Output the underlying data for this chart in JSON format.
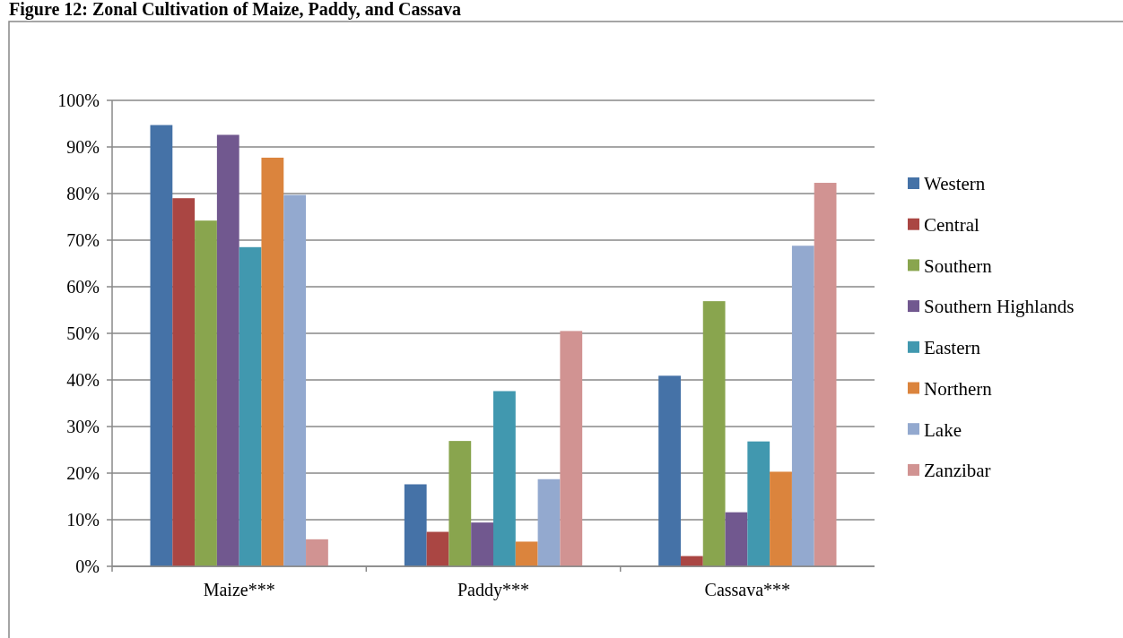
{
  "chart_data": {
    "type": "bar",
    "title": "Figure 12: Zonal Cultivation of Maize, Paddy, and Cassava",
    "categories": [
      "Maize***",
      "Paddy***",
      "Cassava***"
    ],
    "series": [
      {
        "name": "Western",
        "color": "#4572a7",
        "values": [
          94.7,
          17.6,
          40.9
        ]
      },
      {
        "name": "Central",
        "color": "#aa4643",
        "values": [
          79.0,
          7.4,
          2.2
        ]
      },
      {
        "name": "Southern",
        "color": "#89a54e",
        "values": [
          74.2,
          26.9,
          56.9
        ]
      },
      {
        "name": "Southern Highlands",
        "color": "#71588f",
        "values": [
          92.6,
          9.4,
          11.6
        ]
      },
      {
        "name": "Eastern",
        "color": "#4198af",
        "values": [
          68.5,
          37.6,
          26.8
        ]
      },
      {
        "name": "Northern",
        "color": "#db843d",
        "values": [
          87.7,
          5.3,
          20.3
        ]
      },
      {
        "name": "Lake",
        "color": "#93a9cf",
        "values": [
          79.7,
          18.7,
          68.8
        ]
      },
      {
        "name": "Zanzibar",
        "color": "#d19392",
        "values": [
          5.8,
          50.5,
          82.3
        ]
      }
    ],
    "ylim": [
      0,
      100
    ],
    "yticks": [
      {
        "value": 0,
        "label": "0%"
      },
      {
        "value": 10,
        "label": "10%"
      },
      {
        "value": 20,
        "label": "20%"
      },
      {
        "value": 30,
        "label": "30%"
      },
      {
        "value": 40,
        "label": "40%"
      },
      {
        "value": 50,
        "label": "50%"
      },
      {
        "value": 60,
        "label": "60%"
      },
      {
        "value": 70,
        "label": "70%"
      },
      {
        "value": 80,
        "label": "80%"
      },
      {
        "value": 90,
        "label": "90%"
      },
      {
        "value": 100,
        "label": "100%"
      }
    ],
    "grid": "y",
    "legend": "right"
  }
}
